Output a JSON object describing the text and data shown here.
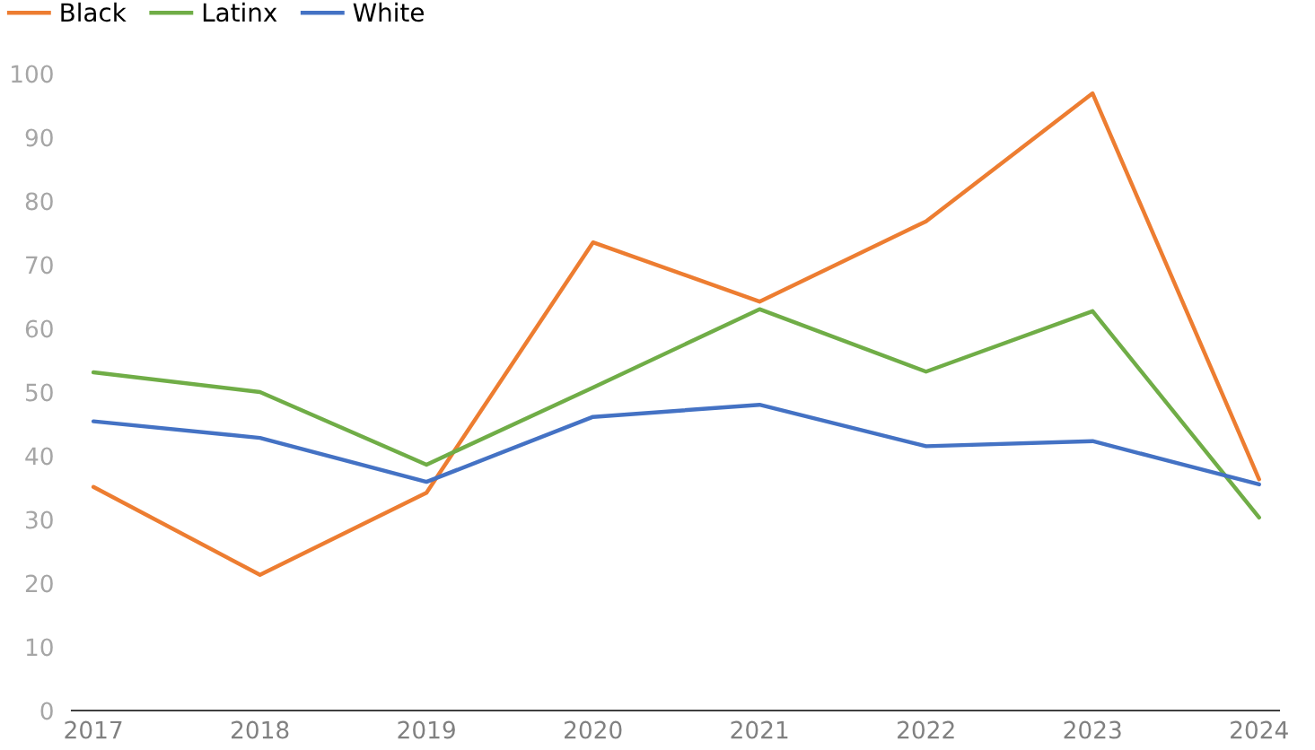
{
  "chart_data": {
    "type": "line",
    "categories": [
      "2017",
      "2018",
      "2019",
      "2020",
      "2021",
      "2022",
      "2023",
      "2024"
    ],
    "series": [
      {
        "name": "Black",
        "color": "#ed7d31",
        "values": [
          35.1,
          21.3,
          34.2,
          73.5,
          64.2,
          76.8,
          96.9,
          36.3
        ]
      },
      {
        "name": "Latinx",
        "color": "#70ad47",
        "values": [
          53.1,
          50.0,
          38.6,
          50.7,
          63.0,
          53.2,
          62.7,
          30.3
        ]
      },
      {
        "name": "White",
        "color": "#4472c4",
        "values": [
          45.4,
          42.8,
          35.9,
          46.1,
          48.0,
          41.5,
          42.3,
          35.5
        ]
      }
    ],
    "ylim": [
      0,
      100
    ],
    "yticks": [
      0,
      10,
      20,
      30,
      40,
      50,
      60,
      70,
      80,
      90,
      100
    ],
    "grid": false,
    "legend": "top left",
    "line_style": "solid",
    "marker": "none"
  }
}
